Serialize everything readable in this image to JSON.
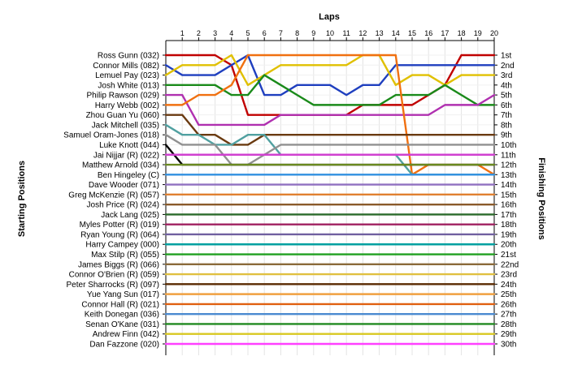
{
  "chart_data": {
    "type": "line",
    "title": "Laps",
    "xlabel": "Laps",
    "ylabel_left": "Starting Positions",
    "ylabel_right": "Finishing Positions",
    "x_ticks": [
      1,
      2,
      3,
      4,
      5,
      6,
      7,
      8,
      9,
      10,
      11,
      12,
      13,
      14,
      15,
      16,
      17,
      18,
      19,
      20
    ],
    "xlim": [
      0,
      20
    ],
    "ylim": [
      1,
      30
    ],
    "grid": true,
    "starting_labels": [
      "Ross Gunn (032)",
      "Connor Mills (082)",
      "Lemuel Pay (023)",
      "Josh White (013)",
      "Philip Rawson (029)",
      "Harry Webb (002)",
      "Zhou Guan Yu (060)",
      "Jack Mitchell (035)",
      "Samuel Oram-Jones (018)",
      "Luke Knott (044)",
      "Jai Nijjar (R) (022)",
      "Matthew Arnold (034)",
      "Ben Hingeley (C)",
      "Dave Wooder (071)",
      "Greg McKenzie (R) (057)",
      "Josh Price (R) (024)",
      "Jack Lang (025)",
      "Myles Potter (R) (019)",
      "Ryan Young (R) (064)",
      "Harry Campey (000)",
      "Max Stilp  (R) (055)",
      "James Biggs (R) (066)",
      "Connor O'Brien (R) (059)",
      "Peter Sharrocks (R) (097)",
      "Yue Yang Sun (017)",
      "Connor Hall (R) (021)",
      "Keith Donegan (036)",
      "Senan O'Kane (031)",
      "Andrew Finn (042)",
      "Dan Fazzone (020)"
    ],
    "finishing_labels": [
      "1st",
      "2nd",
      "3rd",
      "4th",
      "5th",
      "6th",
      "7th",
      "8th",
      "9th",
      "10th",
      "11th",
      "12th",
      "13th",
      "14th",
      "15th",
      "16th",
      "17th",
      "18th",
      "19th",
      "20th",
      "21st",
      "22nd",
      "23rd",
      "24th",
      "25th",
      "26th",
      "27th",
      "28th",
      "29th",
      "30th"
    ],
    "series": [
      {
        "color": "#c00000",
        "values": [
          1,
          1,
          1,
          1,
          2,
          7,
          7,
          7,
          7,
          7,
          7,
          7,
          6,
          6,
          6,
          6,
          5,
          4,
          1,
          1,
          1
        ]
      },
      {
        "color": "#1f3fbf",
        "values": [
          2,
          3,
          3,
          3,
          2,
          1,
          5,
          5,
          4,
          4,
          4,
          5,
          4,
          4,
          2,
          2,
          2,
          2,
          2,
          2,
          2
        ]
      },
      {
        "color": "#e0c000",
        "values": [
          3,
          2,
          2,
          2,
          1,
          4,
          3,
          2,
          2,
          2,
          2,
          2,
          1,
          1,
          4,
          3,
          3,
          4,
          3,
          3,
          3
        ]
      },
      {
        "color": "#1a8a1a",
        "values": [
          4,
          4,
          4,
          4,
          5,
          5,
          3,
          4,
          5,
          6,
          6,
          6,
          6,
          6,
          5,
          5,
          5,
          4,
          5,
          6,
          6
        ]
      },
      {
        "color": "#b030b0",
        "values": [
          5,
          5,
          8,
          8,
          8,
          8,
          8,
          7,
          7,
          7,
          7,
          7,
          7,
          7,
          7,
          7,
          7,
          6,
          6,
          6,
          5
        ]
      },
      {
        "color": "#f07010",
        "values": [
          6,
          6,
          5,
          5,
          4,
          1,
          1,
          1,
          1,
          1,
          1,
          1,
          1,
          1,
          1,
          13,
          12,
          12,
          12,
          12,
          13
        ]
      },
      {
        "color": "#6a3a10",
        "values": [
          7,
          7,
          9,
          9,
          10,
          10,
          9,
          9,
          9,
          9,
          9,
          9,
          9,
          9,
          9,
          9,
          9,
          9,
          9,
          9,
          9
        ]
      },
      {
        "color": "#50a0a0",
        "values": [
          8,
          9,
          9,
          10,
          10,
          9,
          9,
          11,
          11,
          11,
          11,
          11,
          11,
          11,
          11,
          13,
          13,
          13,
          13,
          13,
          13
        ]
      },
      {
        "color": "#909090",
        "values": [
          9,
          10,
          10,
          10,
          12,
          12,
          11,
          10,
          10,
          10,
          10,
          10,
          10,
          10,
          10,
          10,
          10,
          10,
          10,
          10,
          10
        ]
      },
      {
        "color": "#000000",
        "values": [
          10,
          12,
          12,
          12,
          12,
          12,
          12,
          12,
          12,
          12,
          12,
          12,
          12,
          12,
          12,
          12,
          12,
          12,
          12,
          12,
          12
        ]
      },
      {
        "color": "#d040d0",
        "values": [
          11,
          11,
          11,
          11,
          11,
          11,
          11,
          11,
          11,
          11,
          11,
          11,
          11,
          11,
          11,
          11,
          11,
          11,
          11,
          11,
          11
        ]
      },
      {
        "color": "#6a8a20",
        "values": [
          12,
          12,
          12,
          12,
          12,
          12,
          12,
          12,
          12,
          12,
          12,
          12,
          12,
          12,
          12,
          12,
          12,
          12,
          12,
          12,
          12
        ]
      },
      {
        "color": "#3090e0",
        "values": [
          13,
          13,
          13,
          13,
          13,
          13,
          13,
          13,
          13,
          13,
          13,
          13,
          13,
          13,
          13,
          13,
          13,
          13,
          13,
          13,
          13
        ]
      },
      {
        "color": "#9070c0",
        "values": [
          14,
          14,
          14,
          14,
          14,
          14,
          14,
          14,
          14,
          14,
          14,
          14,
          14,
          14,
          14,
          14,
          14,
          14,
          14,
          14,
          14
        ]
      },
      {
        "color": "#e08030",
        "values": [
          15,
          15,
          15,
          15,
          15,
          15,
          15,
          15,
          15,
          15,
          15,
          15,
          15,
          15,
          15,
          15,
          15,
          15,
          15,
          15,
          15
        ]
      },
      {
        "color": "#8a5a2a",
        "values": [
          16,
          16,
          16,
          16,
          16,
          16,
          16,
          16,
          16,
          16,
          16,
          16,
          16,
          16,
          16,
          16,
          16,
          16,
          16,
          16,
          16
        ]
      },
      {
        "color": "#2a6a2a",
        "values": [
          17,
          17,
          17,
          17,
          17,
          17,
          17,
          17,
          17,
          17,
          17,
          17,
          17,
          17,
          17,
          17,
          17,
          17,
          17,
          17,
          17
        ]
      },
      {
        "color": "#a02060",
        "values": [
          18,
          18,
          18,
          18,
          18,
          18,
          18,
          18,
          18,
          18,
          18,
          18,
          18,
          18,
          18,
          18,
          18,
          18,
          18,
          18,
          18
        ]
      },
      {
        "color": "#7060a0",
        "values": [
          19,
          19,
          19,
          19,
          19,
          19,
          19,
          19,
          19,
          19,
          19,
          19,
          19,
          19,
          19,
          19,
          19,
          19,
          19,
          19,
          19
        ]
      },
      {
        "color": "#00a0a0",
        "values": [
          20,
          20,
          20,
          20,
          20,
          20,
          20,
          20,
          20,
          20,
          20,
          20,
          20,
          20,
          20,
          20,
          20,
          20,
          20,
          20,
          20
        ]
      },
      {
        "color": "#20a020",
        "values": [
          21,
          21,
          21,
          21,
          21,
          21,
          21,
          21,
          21,
          21,
          21,
          21,
          21,
          21,
          21,
          21,
          21,
          21,
          21,
          21,
          21
        ]
      },
      {
        "color": "#8a6a3a",
        "values": [
          22,
          22,
          22,
          22,
          22,
          22,
          22,
          22,
          22,
          22,
          22,
          22,
          22,
          22,
          22,
          22,
          22,
          22,
          22,
          22,
          22
        ]
      },
      {
        "color": "#e0c040",
        "values": [
          23,
          23,
          23,
          23,
          23,
          23,
          23,
          23,
          23,
          23,
          23,
          23,
          23,
          23,
          23,
          23,
          23,
          23,
          23,
          23,
          23
        ]
      },
      {
        "color": "#5a2a00",
        "values": [
          24,
          24,
          24,
          24,
          24,
          24,
          24,
          24,
          24,
          24,
          24,
          24,
          24,
          24,
          24,
          24,
          24,
          24,
          24,
          24,
          24
        ]
      },
      {
        "color": "#f0a040",
        "values": [
          25,
          25,
          25,
          25,
          25,
          25,
          25,
          25,
          25,
          25,
          25,
          25,
          25,
          25,
          25,
          25,
          25,
          25,
          25,
          25,
          25
        ]
      },
      {
        "color": "#e06010",
        "values": [
          26,
          26,
          26,
          26,
          26,
          26,
          26,
          26,
          26,
          26,
          26,
          26,
          26,
          26,
          26,
          26,
          26,
          26,
          26,
          26,
          26
        ]
      },
      {
        "color": "#4a8ad0",
        "values": [
          27,
          27,
          27,
          27,
          27,
          27,
          27,
          27,
          27,
          27,
          27,
          27,
          27,
          27,
          27,
          27,
          27,
          27,
          27,
          27,
          27
        ]
      },
      {
        "color": "#208a20",
        "values": [
          28,
          28,
          28,
          28,
          28,
          28,
          28,
          28,
          28,
          28,
          28,
          28,
          28,
          28,
          28,
          28,
          28,
          28,
          28,
          28,
          28
        ]
      },
      {
        "color": "#d8c820",
        "values": [
          29,
          29,
          29,
          29,
          29,
          29,
          29,
          29,
          29,
          29,
          29,
          29,
          29,
          29,
          29,
          29,
          29,
          29,
          29,
          29,
          29
        ]
      },
      {
        "color": "#ff40ff",
        "values": [
          30,
          30,
          30,
          30,
          30,
          30,
          30,
          30,
          30,
          30,
          30,
          30,
          30,
          30,
          30,
          30,
          30,
          30,
          30,
          30,
          30
        ]
      }
    ]
  }
}
